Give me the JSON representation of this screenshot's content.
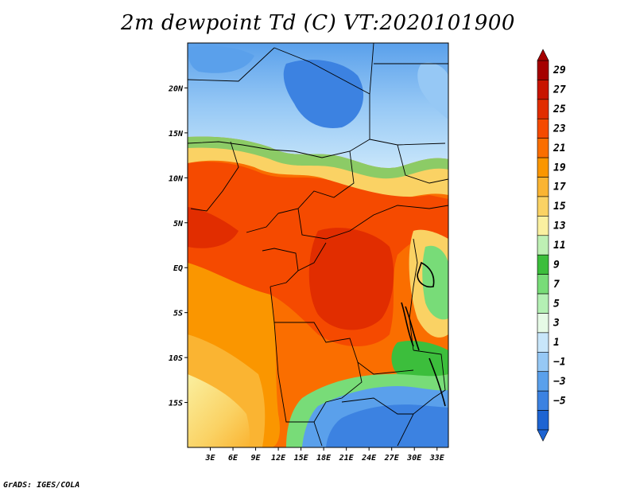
{
  "title": "2m dewpoint Td (C) VT:2020101900",
  "credit": "GrADS: IGES/COLA",
  "map": {
    "lat_ticks": [
      "20N",
      "15N",
      "10N",
      "5N",
      "EQ",
      "5S",
      "10S",
      "15S"
    ],
    "lat_values": [
      20,
      15,
      10,
      5,
      0,
      -5,
      -10,
      -15
    ],
    "lon_ticks": [
      "3E",
      "6E",
      "9E",
      "12E",
      "15E",
      "18E",
      "21E",
      "24E",
      "27E",
      "30E",
      "33E"
    ],
    "lon_values": [
      3,
      6,
      9,
      12,
      15,
      18,
      21,
      24,
      27,
      30,
      33
    ],
    "lon_range": [
      0,
      34.5
    ],
    "lat_range": [
      -20,
      25
    ]
  },
  "colorbar": {
    "labels": [
      "29",
      "27",
      "25",
      "23",
      "21",
      "19",
      "17",
      "15",
      "13",
      "11",
      "9",
      "7",
      "5",
      "3",
      "1",
      "−1",
      "−3",
      "−5"
    ],
    "colors": [
      "#a50000",
      "#c81400",
      "#e12d00",
      "#f54a00",
      "#fa6e00",
      "#fa9600",
      "#fab432",
      "#fad264",
      "#faf0a0",
      "#bef0b4",
      "#3cbe3c",
      "#78dc78",
      "#b4f0b4",
      "#e6fae6",
      "#c8e6fa",
      "#96c8f5",
      "#5aa0eb",
      "#3c82e1",
      "#1e64d2"
    ]
  }
}
